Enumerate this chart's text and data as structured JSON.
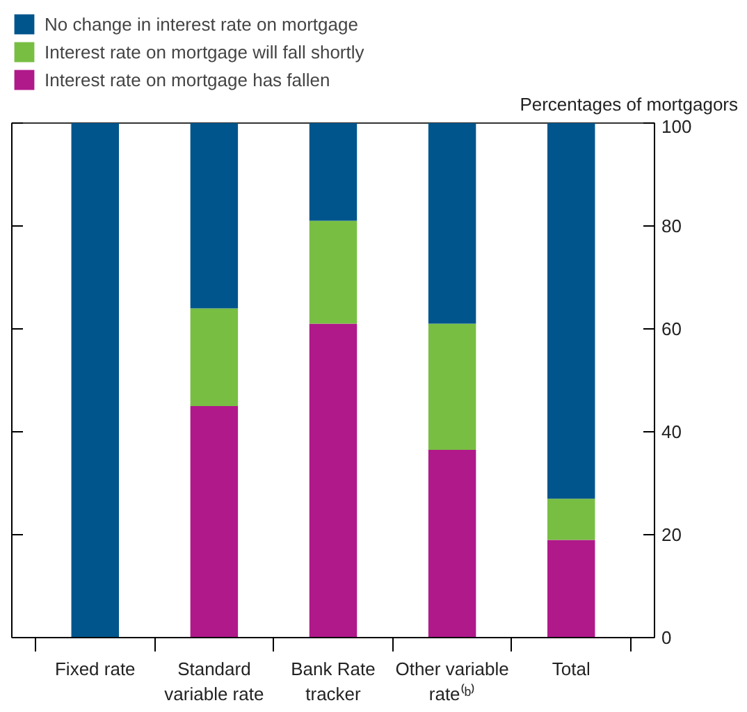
{
  "chart_data": {
    "type": "bar",
    "stacked": true,
    "ylabel": "Percentages of mortgagors",
    "categories": [
      "Fixed rate",
      "Standard\nvariable rate",
      "Bank Rate\ntracker",
      "Other variable\nrate⁽ᵇ⁾",
      "Total"
    ],
    "series": [
      {
        "name": "Interest rate on mortgage has fallen",
        "color": "#b0198a",
        "values": [
          0,
          45,
          61,
          36.5,
          19
        ]
      },
      {
        "name": "Interest rate on mortgage will fall shortly",
        "color": "#78be43",
        "values": [
          0,
          19,
          20,
          24.5,
          8
        ]
      },
      {
        "name": "No change in interest rate on mortgage",
        "color": "#00558c",
        "values": [
          100,
          36,
          19,
          39,
          73
        ]
      }
    ],
    "ylim": [
      0,
      100
    ],
    "yticks": [
      0,
      20,
      40,
      60,
      80,
      100
    ],
    "grid": false,
    "legend": "top left"
  }
}
